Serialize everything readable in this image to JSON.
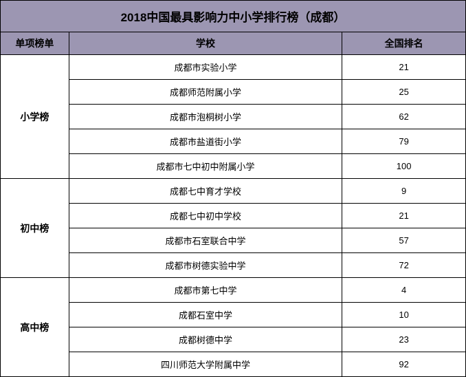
{
  "title": "2018中国最具影响力中小学排行榜（成都）",
  "headers": {
    "category": "单项榜单",
    "school": "学校",
    "rank": "全国排名"
  },
  "categories": [
    {
      "name": "小学榜",
      "rows": [
        {
          "school": "成都市实验小学",
          "rank": "21"
        },
        {
          "school": "成都师范附属小学",
          "rank": "25"
        },
        {
          "school": "成都市泡桐树小学",
          "rank": "62"
        },
        {
          "school": "成都市盐道街小学",
          "rank": "79"
        },
        {
          "school": "成都市七中初中附属小学",
          "rank": "100"
        }
      ]
    },
    {
      "name": "初中榜",
      "rows": [
        {
          "school": "成都七中育才学校",
          "rank": "9"
        },
        {
          "school": "成都七中初中学校",
          "rank": "21"
        },
        {
          "school": "成都市石室联合中学",
          "rank": "57"
        },
        {
          "school": "成都市树德实验中学",
          "rank": "72"
        }
      ]
    },
    {
      "name": "高中榜",
      "rows": [
        {
          "school": "成都市第七中学",
          "rank": "4"
        },
        {
          "school": "成都石室中学",
          "rank": "10"
        },
        {
          "school": "成都树德中学",
          "rank": "23"
        },
        {
          "school": "四川师范大学附属中学",
          "rank": "92"
        }
      ]
    }
  ],
  "style": {
    "header_bg": "#9c96b2",
    "border_color": "#000000",
    "title_fontsize": 17,
    "header_fontsize": 14,
    "cell_fontsize": 13,
    "col_widths": {
      "category": 100,
      "school": 398,
      "rank": 180
    }
  }
}
